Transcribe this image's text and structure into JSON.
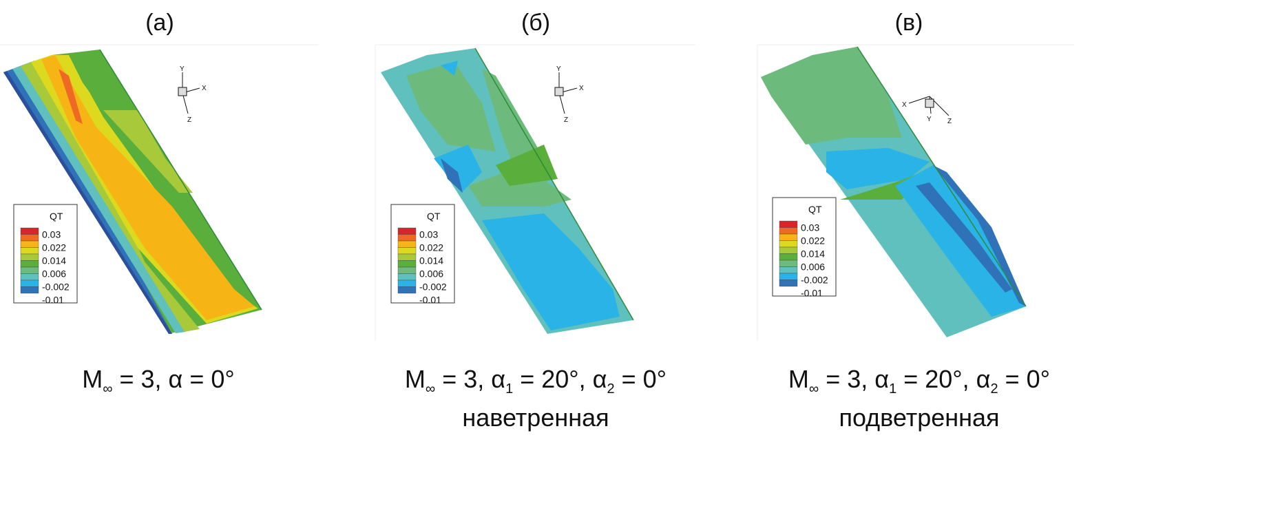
{
  "panels": [
    {
      "label": "(a)",
      "caption_line1": "M∞ = 3, α = 0°",
      "caption_line2": "",
      "axes": [
        "Y",
        "X",
        "Z"
      ]
    },
    {
      "label": "(б)",
      "caption_line1": "M∞ = 3, α1 = 20°, α2 = 0°",
      "caption_line2": "наветренная",
      "axes": [
        "Y",
        "X",
        "Z"
      ]
    },
    {
      "label": "(в)",
      "caption_line1": "M∞ = 3, α1 = 20°, α2 = 0°",
      "caption_line2": "подветренная",
      "axes": [
        "X",
        "Y",
        "Z"
      ]
    }
  ],
  "caption_parts": {
    "M": "M",
    "inf": "∞",
    "eq3": " = 3, ",
    "alpha": "α",
    "one": "1",
    "two": "2",
    "a0": " = 0°",
    "a20": " = 20°, "
  },
  "legend": {
    "title": "QT",
    "labels": [
      "0.03",
      "0.022",
      "0.014",
      "0.006",
      "-0.002",
      "-0.01"
    ],
    "colors": [
      "#d9252a",
      "#ee6a24",
      "#f7b515",
      "#dcd91f",
      "#a7c93a",
      "#5aae3b",
      "#6cbb7c",
      "#60c0bd",
      "#2ab3e6",
      "#2f72b8",
      "#2b4f9c"
    ]
  }
}
